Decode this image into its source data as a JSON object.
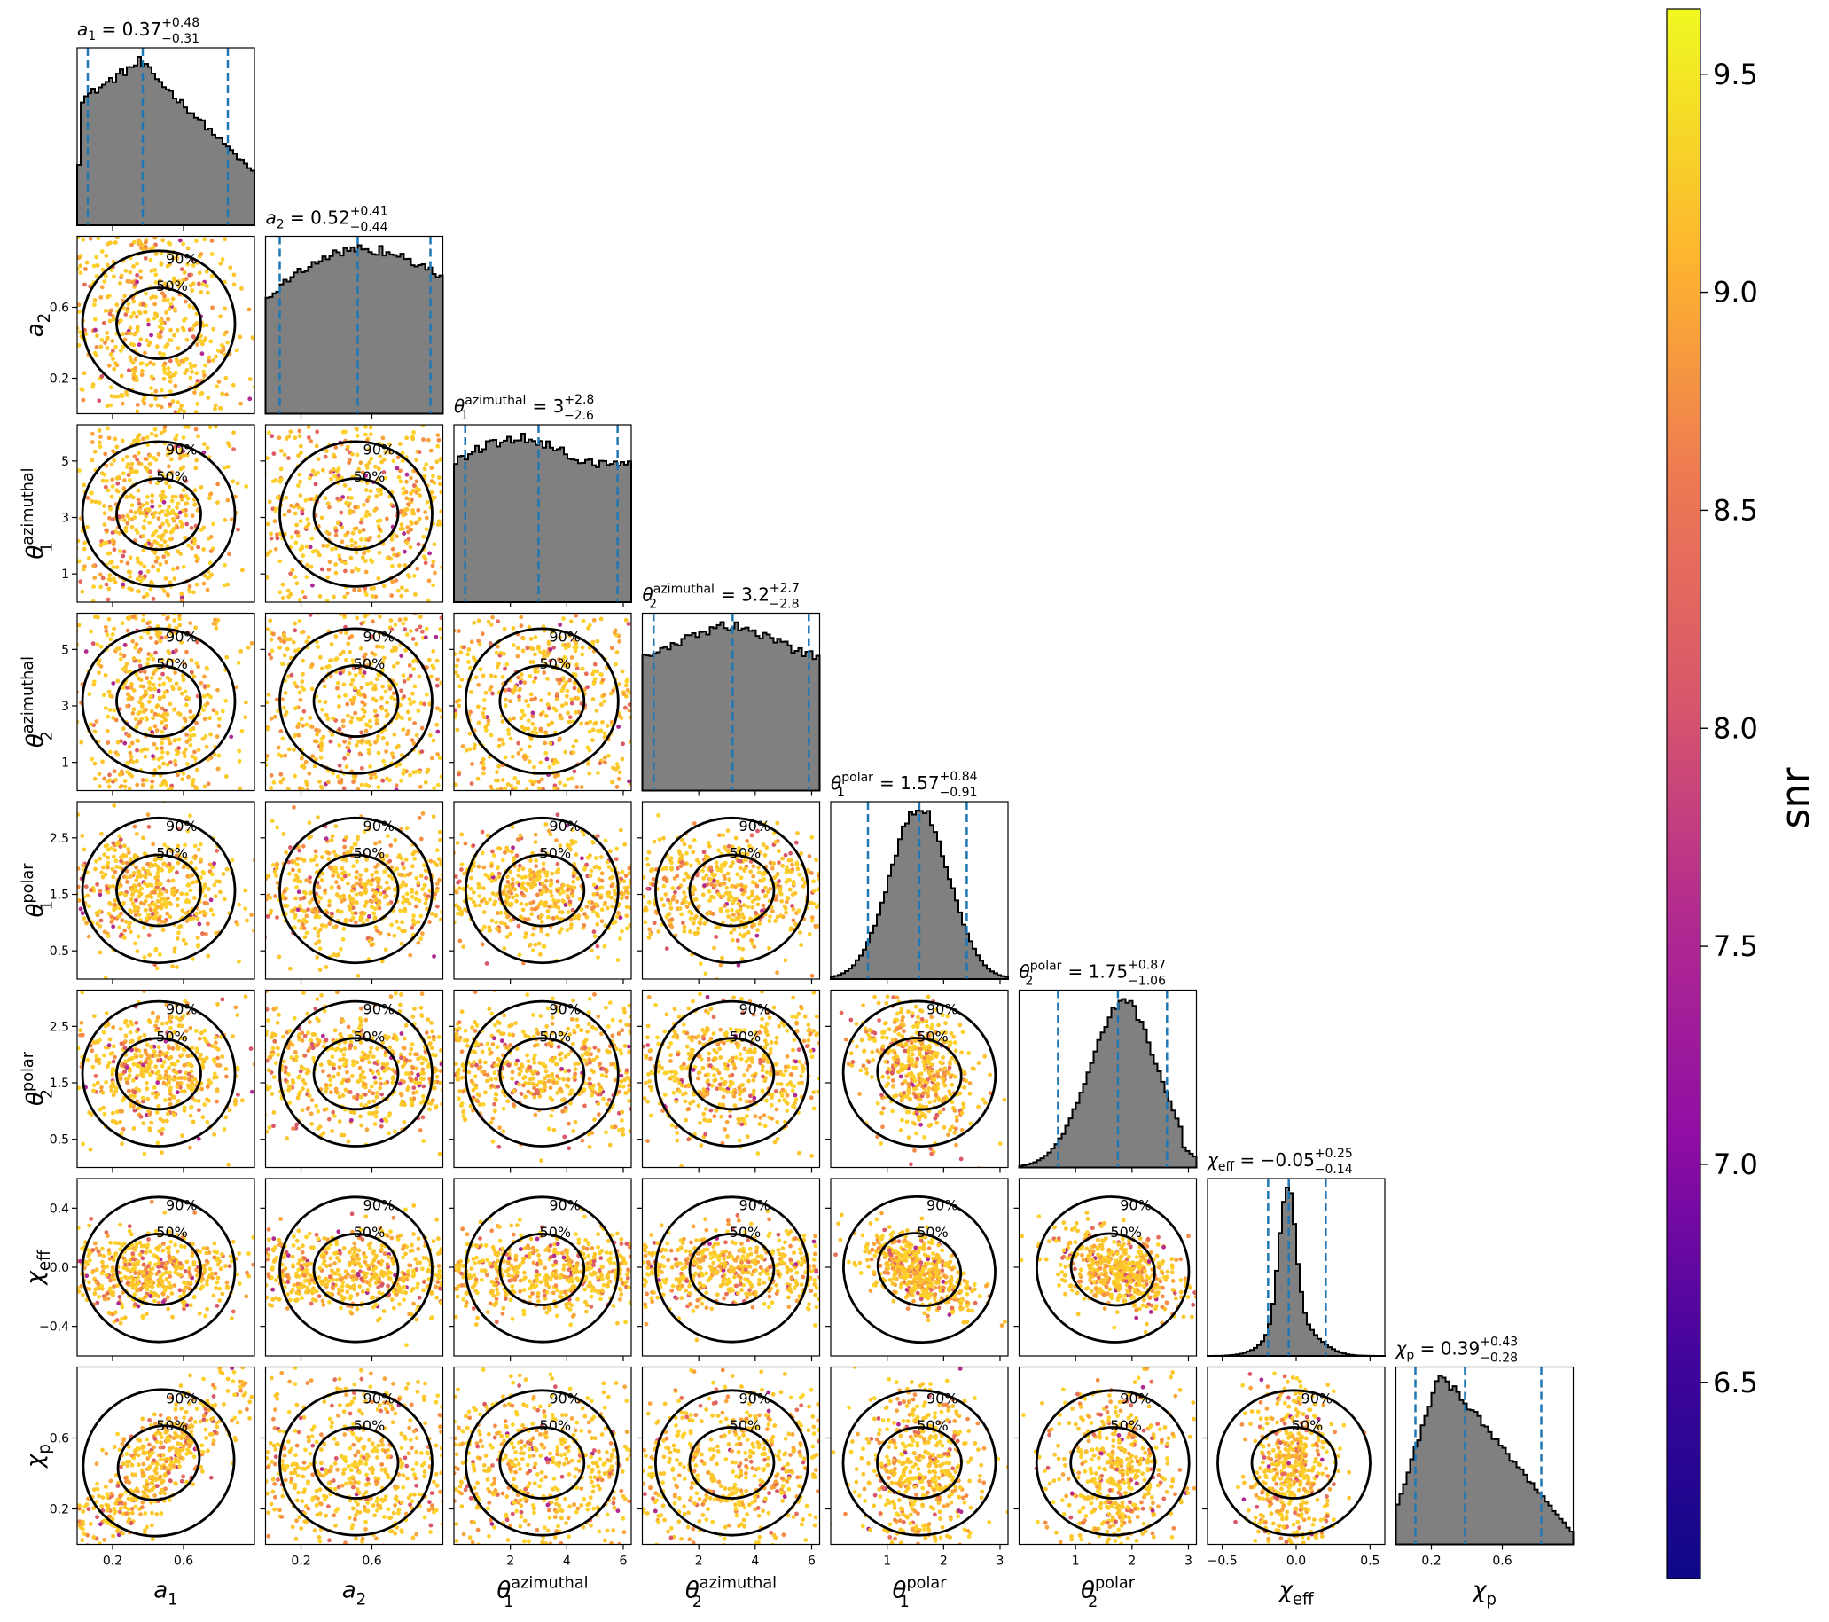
{
  "chart_data": {
    "type": "corner",
    "parameters": [
      {
        "id": "a1",
        "symbol": "a",
        "sub": "1",
        "sup": "",
        "range": [
          0,
          1
        ],
        "ticks": [
          0.2,
          0.6
        ],
        "tick_labels": [
          "0.2",
          "0.6"
        ],
        "median": "0.37",
        "plus": "+0.48",
        "minus": "−0.31",
        "lines": [
          0.06,
          0.37,
          0.85
        ]
      },
      {
        "id": "a2",
        "symbol": "a",
        "sub": "2",
        "sup": "",
        "range": [
          0,
          1
        ],
        "ticks": [
          0.2,
          0.6
        ],
        "tick_labels": [
          "0.2",
          "0.6"
        ],
        "median": "0.52",
        "plus": "+0.41",
        "minus": "−0.44",
        "lines": [
          0.08,
          0.52,
          0.93
        ]
      },
      {
        "id": "t1a",
        "symbol": "θ",
        "sub": "1",
        "sup": "azimuthal",
        "range": [
          0,
          6.283
        ],
        "ticks": [
          1,
          3,
          5
        ],
        "tick_labels": [
          "1",
          "3",
          "5"
        ],
        "xticks": [
          2,
          4,
          6
        ],
        "xtick_labels": [
          "2",
          "4",
          "6"
        ],
        "median": "3",
        "plus": "+2.8",
        "minus": "−2.6",
        "lines": [
          0.4,
          3.0,
          5.8
        ]
      },
      {
        "id": "t2a",
        "symbol": "θ",
        "sub": "2",
        "sup": "azimuthal",
        "range": [
          0,
          6.283
        ],
        "ticks": [
          1,
          3,
          5
        ],
        "tick_labels": [
          "1",
          "3",
          "5"
        ],
        "xticks": [
          2,
          4,
          6
        ],
        "xtick_labels": [
          "2",
          "4",
          "6"
        ],
        "median": "3.2",
        "plus": "+2.7",
        "minus": "−2.8",
        "lines": [
          0.4,
          3.2,
          5.9
        ]
      },
      {
        "id": "t1p",
        "symbol": "θ",
        "sub": "1",
        "sup": "polar",
        "range": [
          0,
          3.1416
        ],
        "ticks": [
          0.5,
          1.5,
          2.5
        ],
        "tick_labels": [
          "0.5",
          "1.5",
          "2.5"
        ],
        "xticks": [
          1,
          2,
          3
        ],
        "xtick_labels": [
          "1",
          "2",
          "3"
        ],
        "median": "1.57",
        "plus": "+0.84",
        "minus": "−0.91",
        "lines": [
          0.66,
          1.57,
          2.41
        ]
      },
      {
        "id": "t2p",
        "symbol": "θ",
        "sub": "2",
        "sup": "polar",
        "range": [
          0,
          3.1416
        ],
        "ticks": [
          0.5,
          1.5,
          2.5
        ],
        "tick_labels": [
          "0.5",
          "1.5",
          "2.5"
        ],
        "xticks": [
          1,
          2,
          3
        ],
        "xtick_labels": [
          "1",
          "2",
          "3"
        ],
        "median": "1.75",
        "plus": "+0.87",
        "minus": "−1.06",
        "lines": [
          0.69,
          1.75,
          2.62
        ]
      },
      {
        "id": "chieff",
        "symbol": "χ",
        "sub": "eff",
        "sup": "",
        "range": [
          -0.6,
          0.6
        ],
        "ticks": [
          -0.4,
          0.0,
          0.4
        ],
        "tick_labels": [
          "−0.4",
          "0.0",
          "0.4"
        ],
        "xticks": [
          -0.5,
          0.0,
          0.5
        ],
        "xtick_labels": [
          "−0.5",
          "0.0",
          "0.5"
        ],
        "median": "−0.05",
        "plus": "+0.25",
        "minus": "−0.14",
        "lines": [
          -0.19,
          -0.05,
          0.2
        ]
      },
      {
        "id": "chip",
        "symbol": "χ",
        "sub": "p",
        "sup": "",
        "range": [
          0,
          1
        ],
        "ticks": [
          0.2,
          0.6
        ],
        "tick_labels": [
          "0.2",
          "0.6"
        ],
        "median": "0.39",
        "plus": "+0.43",
        "minus": "−0.28",
        "lines": [
          0.11,
          0.39,
          0.82
        ]
      }
    ],
    "title_format": "{label} = {median}",
    "contour_levels": [
      "50%",
      "90%"
    ],
    "scatter_colormap": "plasma",
    "colorbar": {
      "label": "snr",
      "range": [
        6.05,
        9.65
      ],
      "ticks": [
        6.5,
        7.0,
        7.5,
        8.0,
        8.5,
        9.0,
        9.5
      ],
      "tick_labels": [
        "6.5",
        "7.0",
        "7.5",
        "8.0",
        "8.5",
        "9.0",
        "9.5"
      ]
    },
    "colors": {
      "histogram_fill": "#808080",
      "histogram_edge": "#000000",
      "quantile_line": "#1f77b4",
      "contour": "#000000"
    }
  }
}
